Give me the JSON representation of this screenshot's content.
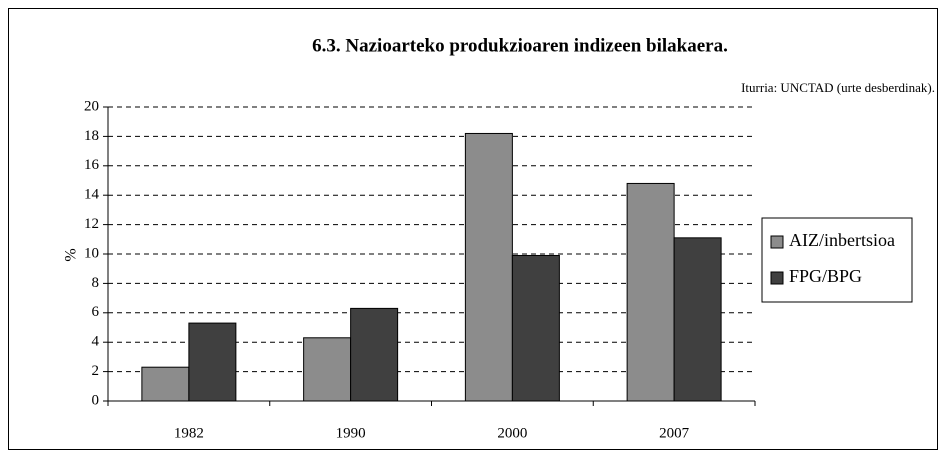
{
  "chart_data": {
    "type": "bar",
    "title": "6.3. Nazioarteko produkzioaren indizeen bilakaera.",
    "source": "Iturria: UNCTAD (urte desberdinak).",
    "ylabel": "%",
    "categories": [
      "1982",
      "1990",
      "2000",
      "2007"
    ],
    "series": [
      {
        "name": "AIZ/inbertsioa",
        "color": "#8c8c8c",
        "values": [
          2.3,
          4.3,
          18.2,
          14.8
        ]
      },
      {
        "name": "FPG/BPG",
        "color": "#404040",
        "values": [
          5.3,
          6.3,
          9.9,
          11.1
        ]
      }
    ],
    "ylim": [
      0,
      20
    ],
    "yticks": [
      0,
      2,
      4,
      6,
      8,
      10,
      12,
      14,
      16,
      18,
      20
    ],
    "grid": true,
    "legend": "right"
  }
}
